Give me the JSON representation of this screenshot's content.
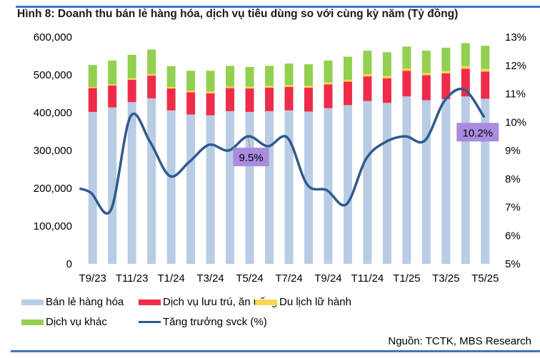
{
  "figure": {
    "title": "Hình 8: Doanh thu bán lẻ hàng hóa, dịch vụ tiêu dùng so với cùng kỳ năm (Tỷ đồng)",
    "source": "Nguồn: TCTK, MBS Research",
    "accent_color": "#4472C4"
  },
  "chart_data": {
    "type": "bar",
    "stacked": true,
    "title": "Hình 8: Doanh thu bán lẻ hàng hóa, dịch vụ tiêu dùng so với cùng kỳ năm (Tỷ đồng)",
    "xlabel": "",
    "ylabel": "Tỷ đồng",
    "y2label": "%",
    "categories": [
      "T9/23",
      "T10/23",
      "T11/23",
      "T12/23",
      "T1/24",
      "T2/24",
      "T3/24",
      "T4/24",
      "T5/24",
      "T6/24",
      "T7/24",
      "T8/24",
      "T9/24",
      "T10/24",
      "T11/24",
      "T12/24",
      "T1/25",
      "T2/25",
      "T3/25",
      "T4/25",
      "T5/25"
    ],
    "x_tick_labels": [
      "T9/23",
      "T11/23",
      "T1/24",
      "T3/24",
      "T5/24",
      "T7/24",
      "T9/24",
      "T11/24",
      "T1/25",
      "T3/25",
      "T5/25"
    ],
    "ylim": [
      0,
      600000
    ],
    "y_ticks": [
      0,
      100000,
      200000,
      300000,
      400000,
      500000,
      600000
    ],
    "y_tick_labels": [
      "0",
      "100,000",
      "200,000",
      "300,000",
      "400,000",
      "500,000",
      "600,000"
    ],
    "y2lim": [
      5,
      13
    ],
    "y2_ticks": [
      5,
      6,
      7,
      8,
      9,
      10,
      11,
      12,
      13
    ],
    "y2_tick_labels": [
      "5%",
      "6%",
      "7%",
      "8%",
      "9%",
      "10%",
      "11%",
      "12%",
      "13%"
    ],
    "grid": false,
    "legend_position": "bottom",
    "series": [
      {
        "name": "Bán lẻ hàng hóa",
        "type": "bar",
        "axis": "left",
        "color": "#B8CCE4",
        "values": [
          402000,
          414000,
          428000,
          438000,
          406000,
          395000,
          393000,
          404000,
          402000,
          404000,
          406000,
          403000,
          412000,
          420000,
          431000,
          426000,
          443000,
          433000,
          436000,
          443000,
          437000
        ]
      },
      {
        "name": "Dịch vụ lưu trú, ăn uống",
        "type": "bar",
        "axis": "left",
        "color": "#EE2C4A",
        "values": [
          63000,
          58000,
          59000,
          60000,
          58000,
          59000,
          58000,
          61000,
          62000,
          62000,
          62000,
          63000,
          63000,
          62000,
          65000,
          65000,
          68000,
          66000,
          68000,
          73000,
          72000
        ]
      },
      {
        "name": "Du lịch lữ hành",
        "type": "bar",
        "axis": "left",
        "color": "#FFD44F",
        "values": [
          3000,
          3000,
          4000,
          4000,
          4000,
          4000,
          5000,
          4000,
          5000,
          5000,
          5000,
          5000,
          5000,
          5000,
          6000,
          6000,
          6000,
          6000,
          6000,
          7000,
          7000
        ]
      },
      {
        "name": "Dịch vụ khác",
        "type": "bar",
        "axis": "left",
        "color": "#92D050",
        "values": [
          58000,
          63000,
          62000,
          65000,
          55000,
          53000,
          55000,
          55000,
          52000,
          53000,
          57000,
          57000,
          58000,
          61000,
          62000,
          63000,
          58000,
          59000,
          62000,
          61000,
          61000
        ]
      },
      {
        "name": "Tăng trưởng svck (%)",
        "type": "line",
        "axis": "right",
        "color": "#2F5A8E",
        "values": [
          7.5,
          6.9,
          10.2,
          9.3,
          8.1,
          8.6,
          9.2,
          9.0,
          9.5,
          9.15,
          9.45,
          7.8,
          7.6,
          7.1,
          8.7,
          9.3,
          9.5,
          9.35,
          10.75,
          11.15,
          10.2
        ]
      }
    ],
    "annotations": [
      {
        "text": "9.5%",
        "category": "T5/24",
        "series": "Tăng trưởng svck (%)",
        "box_color": "#A98BE0"
      },
      {
        "text": "10.2%",
        "category": "T5/25",
        "series": "Tăng trưởng svck (%)",
        "box_color": "#A98BE0"
      }
    ]
  }
}
